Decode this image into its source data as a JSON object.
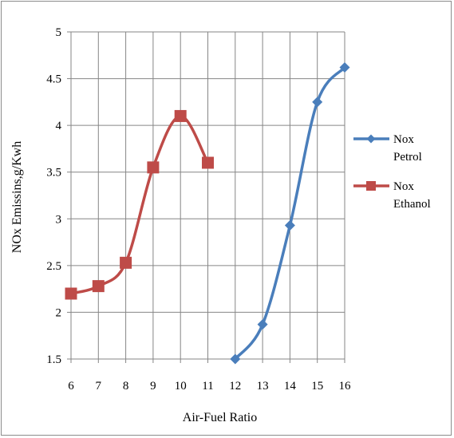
{
  "chart_data": {
    "type": "line",
    "xlabel": "Air-Fuel Ratio",
    "ylabel": "NOx Emissins,g/Kwh",
    "xlim": [
      6,
      16
    ],
    "ylim": [
      1.5,
      5
    ],
    "x_ticks": [
      "6",
      "7",
      "8",
      "9",
      "10",
      "11",
      "12",
      "13",
      "14",
      "15",
      "16"
    ],
    "y_ticks": [
      "1.5",
      "2",
      "2.5",
      "3",
      "3.5",
      "4",
      "4.5",
      "5"
    ],
    "grid": true,
    "legend_position": "right",
    "series": [
      {
        "name_lines": [
          "Nox",
          "Petrol"
        ],
        "color": "#4a7ebb",
        "marker": "diamond",
        "x": [
          12,
          13,
          14,
          15,
          16
        ],
        "y": [
          1.5,
          1.87,
          2.93,
          4.25,
          4.62
        ]
      },
      {
        "name_lines": [
          "Nox",
          "Ethanol"
        ],
        "color": "#be4b48",
        "marker": "square",
        "x": [
          6,
          7,
          8,
          9,
          10,
          11
        ],
        "y": [
          2.2,
          2.28,
          2.53,
          3.55,
          4.1,
          3.6
        ]
      }
    ]
  }
}
